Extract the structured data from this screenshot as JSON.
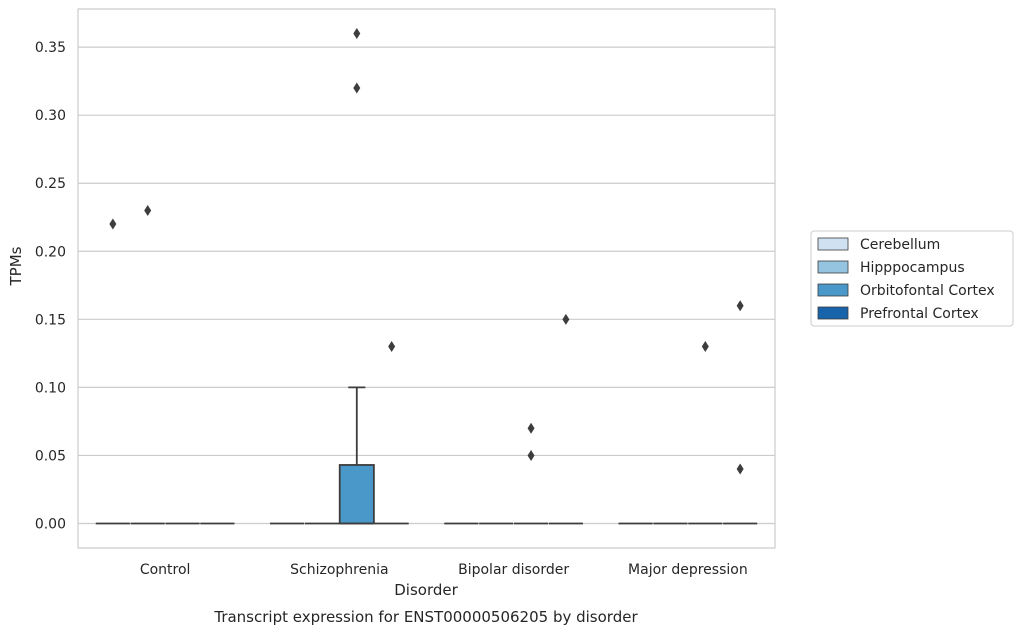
{
  "chart_data": {
    "type": "box",
    "caption": "Transcript expression for ENST00000506205 by disorder",
    "xlabel": "Disorder",
    "ylabel": "TPMs",
    "ylim": [
      -0.018,
      0.378
    ],
    "yticks": [
      0.0,
      0.05,
      0.1,
      0.15,
      0.2,
      0.25,
      0.3,
      0.35
    ],
    "ytick_labels": [
      "0.00",
      "0.05",
      "0.10",
      "0.15",
      "0.20",
      "0.25",
      "0.30",
      "0.35"
    ],
    "grid": true,
    "legend_position": "right",
    "categories": [
      "Control",
      "Schizophrenia",
      "Bipolar disorder",
      "Major depression"
    ],
    "series": [
      {
        "name": "Cerebellum",
        "color": "#d0e1f2",
        "boxes": [
          {
            "q1": 0,
            "median": 0,
            "q3": 0,
            "whislo": 0,
            "whishi": 0,
            "fliers": [
              0.22
            ]
          },
          {
            "q1": 0,
            "median": 0,
            "q3": 0,
            "whislo": 0,
            "whishi": 0,
            "fliers": []
          },
          {
            "q1": 0,
            "median": 0,
            "q3": 0,
            "whislo": 0,
            "whishi": 0,
            "fliers": []
          },
          {
            "q1": 0,
            "median": 0,
            "q3": 0,
            "whislo": 0,
            "whishi": 0,
            "fliers": []
          }
        ]
      },
      {
        "name": "Hipppocampus",
        "color": "#94c4df",
        "boxes": [
          {
            "q1": 0,
            "median": 0,
            "q3": 0,
            "whislo": 0,
            "whishi": 0,
            "fliers": [
              0.23
            ]
          },
          {
            "q1": 0,
            "median": 0,
            "q3": 0,
            "whislo": 0,
            "whishi": 0,
            "fliers": []
          },
          {
            "q1": 0,
            "median": 0,
            "q3": 0,
            "whislo": 0,
            "whishi": 0,
            "fliers": []
          },
          {
            "q1": 0,
            "median": 0,
            "q3": 0,
            "whislo": 0,
            "whishi": 0,
            "fliers": []
          }
        ]
      },
      {
        "name": "Orbitofontal Cortex",
        "color": "#4a98c9",
        "boxes": [
          {
            "q1": 0,
            "median": 0,
            "q3": 0,
            "whislo": 0,
            "whishi": 0,
            "fliers": []
          },
          {
            "q1": 0,
            "median": 0,
            "q3": 0.043,
            "whislo": 0,
            "whishi": 0.1,
            "fliers": [
              0.32,
              0.36
            ]
          },
          {
            "q1": 0,
            "median": 0,
            "q3": 0,
            "whislo": 0,
            "whishi": 0,
            "fliers": [
              0.05,
              0.07
            ]
          },
          {
            "q1": 0,
            "median": 0,
            "q3": 0,
            "whislo": 0,
            "whishi": 0,
            "fliers": [
              0.13
            ]
          }
        ]
      },
      {
        "name": "Prefrontal Cortex",
        "color": "#1764ab",
        "boxes": [
          {
            "q1": 0,
            "median": 0,
            "q3": 0,
            "whislo": 0,
            "whishi": 0,
            "fliers": []
          },
          {
            "q1": 0,
            "median": 0,
            "q3": 0,
            "whislo": 0,
            "whishi": 0,
            "fliers": [
              0.13
            ]
          },
          {
            "q1": 0,
            "median": 0,
            "q3": 0,
            "whislo": 0,
            "whishi": 0,
            "fliers": [
              0.15
            ]
          },
          {
            "q1": 0,
            "median": 0,
            "q3": 0,
            "whislo": 0,
            "whishi": 0,
            "fliers": [
              0.04,
              0.16
            ]
          }
        ]
      }
    ]
  }
}
